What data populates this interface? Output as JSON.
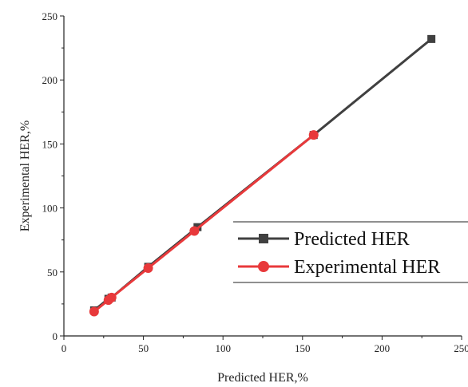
{
  "chart_data": {
    "type": "line",
    "xlabel": "Predicted HER,%",
    "ylabel": "Experimental HER,%",
    "xlim": [
      0,
      250
    ],
    "ylim": [
      0,
      250
    ],
    "xticks": [
      0,
      50,
      100,
      150,
      200,
      250
    ],
    "yticks": [
      0,
      50,
      100,
      150,
      200,
      250
    ],
    "grid": false,
    "legend_position": "center-right",
    "series": [
      {
        "name": "Predicted HER",
        "color": "#404040",
        "marker": "square",
        "x": [
          19,
          28,
          30,
          53,
          84,
          157,
          231
        ],
        "y": [
          20,
          29,
          30,
          54,
          85,
          157,
          232
        ]
      },
      {
        "name": "Experimental HER",
        "color": "#e8393b",
        "marker": "circle",
        "x": [
          19,
          28,
          30,
          53,
          82,
          157
        ],
        "y": [
          19,
          28,
          30,
          53,
          82,
          157
        ]
      }
    ]
  }
}
